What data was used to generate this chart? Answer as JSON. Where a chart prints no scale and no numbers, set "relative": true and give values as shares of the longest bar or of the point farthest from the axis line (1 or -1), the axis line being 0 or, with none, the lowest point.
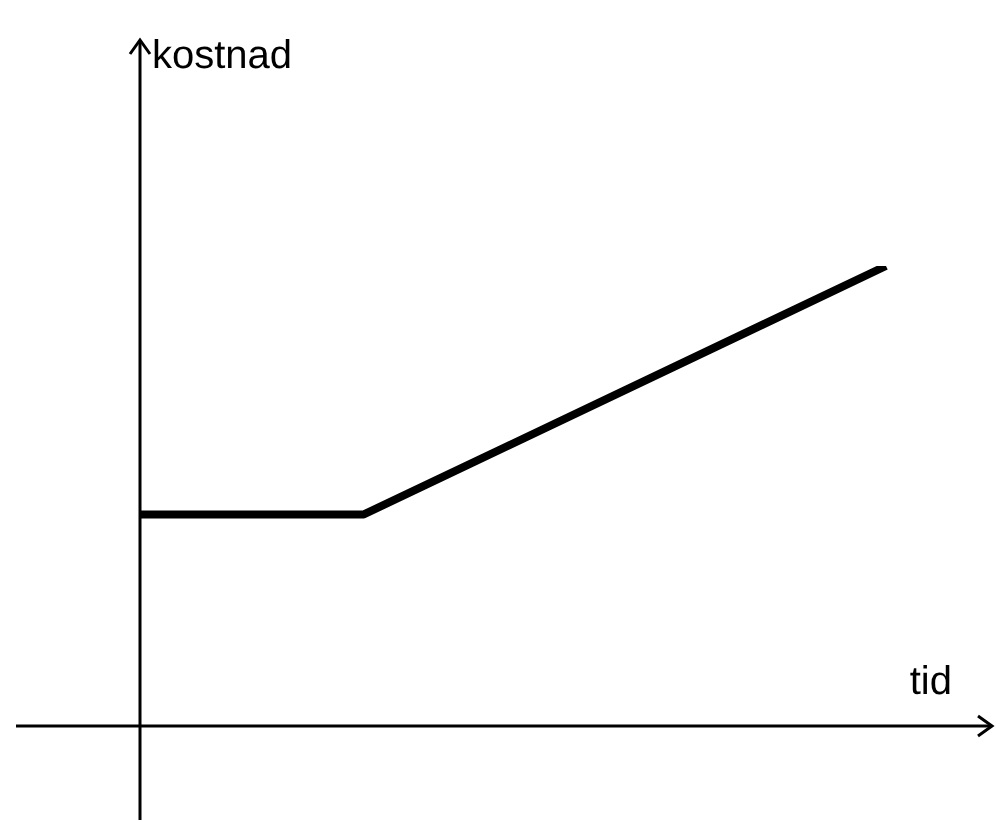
{
  "chart_data": {
    "type": "line",
    "xlabel": "tid",
    "ylabel": "kostnad",
    "relative": true,
    "marker": "none",
    "categories": [
      null,
      null,
      null,
      null,
      null,
      null,
      null,
      null,
      null,
      null,
      null
    ],
    "series": [
      {
        "color": "#000000",
        "values": [
          0.46,
          null,
          null,
          0.46,
          null,
          null,
          null,
          null,
          null,
          null,
          1
        ]
      }
    ]
  }
}
